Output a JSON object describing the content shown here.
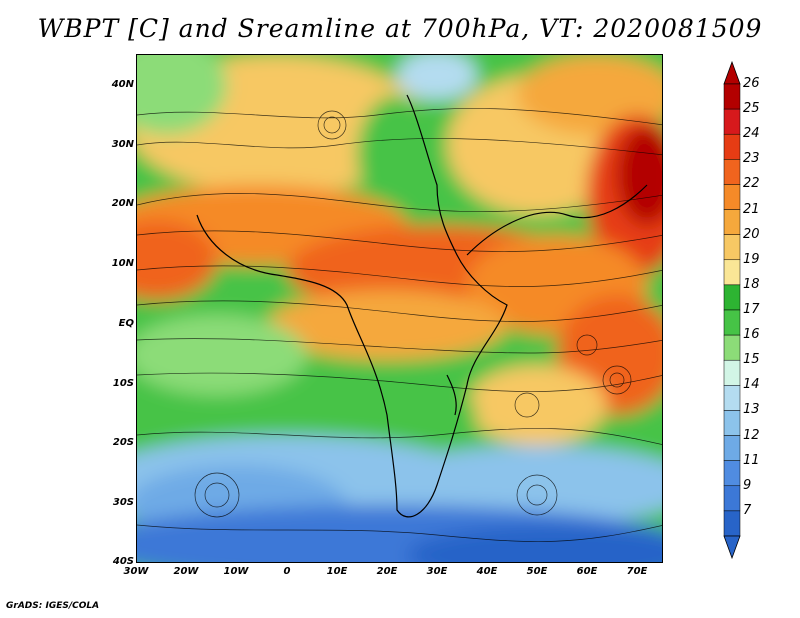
{
  "title": "WBPT [C] and Sreamline at 700hPa, VT: 2020081509",
  "credit": "GrADS: IGES/COLA",
  "lat_labels": [
    "40N",
    "30N",
    "20N",
    "10N",
    "EQ",
    "10S",
    "20S",
    "30S",
    "40S"
  ],
  "lon_labels": [
    "30W",
    "20W",
    "10W",
    "0",
    "10E",
    "20E",
    "30E",
    "40E",
    "50E",
    "60E",
    "70E"
  ],
  "colorbar": {
    "labels": [
      "26",
      "25",
      "24",
      "23",
      "22",
      "21",
      "20",
      "19",
      "18",
      "17",
      "16",
      "15",
      "14",
      "13",
      "12",
      "11",
      "9",
      "7"
    ],
    "colors": [
      "#b30000",
      "#d7191c",
      "#e63c14",
      "#f0641e",
      "#f58a28",
      "#f5a83c",
      "#f7c864",
      "#fae696",
      "#2db432",
      "#46c346",
      "#8cdc78",
      "#d2f5e6",
      "#b4dcf0",
      "#8cc3eb",
      "#6eaae6",
      "#508ce1",
      "#3c78d7",
      "#2864c8"
    ]
  },
  "colors": {
    "warm": "#f58a28",
    "hot": "#d7191c",
    "green": "#46c346",
    "cool": "#8cc3eb",
    "cold": "#2864c8"
  }
}
